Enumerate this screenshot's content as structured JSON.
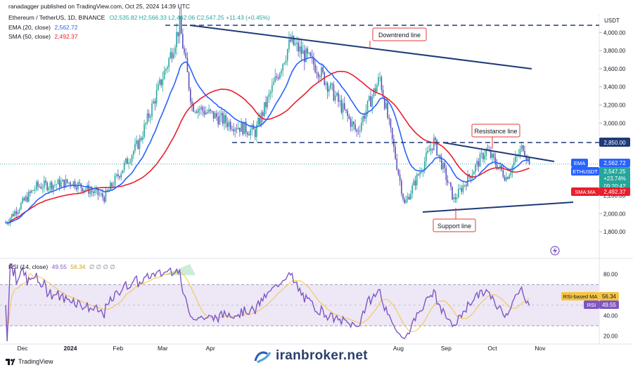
{
  "header": {
    "publisher": "ranadagger published on TradingView.com, Oct 25, 2024 14:39 UTC",
    "symbol": "Ethereum / TetherUS, 1D, BINANCE",
    "ohlc": "O2,535.82 H2,566.33 L2,462.06 C2,547.25 +11.43 (+0.45%)",
    "ema_label": "EMA (20, close)",
    "ema_value": "2,562.72",
    "sma_label": "SMA (50, close)",
    "sma_value": "2,492.37",
    "rsi_label": "RSI (14, close)",
    "rsi_value": "49.55",
    "rsi_ma_value": "56.34",
    "rsi_extra": "∅ ∅ ∅ ∅"
  },
  "colors": {
    "up": "#26a69a",
    "down": "#5b4fb8",
    "ema": "#2962ff",
    "sma": "#e91e2c",
    "trend": "#1e3a78",
    "rsi": "#7e57c2",
    "rsi_ma": "#f5c542",
    "rsi_band": "#ede7f6"
  },
  "chart_data": [
    {
      "type": "candlestick",
      "title": "Ethereum / TetherUS, 1D, BINANCE",
      "currency": "USDT",
      "y_ticks": [
        "4,000.00",
        "3,800.00",
        "3,600.00",
        "3,400.00",
        "3,200.00",
        "3,000.00",
        "2,200.00",
        "2,000.00",
        "1,800.00"
      ],
      "x_ticks": [
        "Dec",
        "2024",
        "Feb",
        "Mar",
        "Apr",
        "Aug",
        "Sep",
        "Oct",
        "Nov"
      ],
      "ylim": [
        1700,
        4080
      ],
      "last_close": 2547.25,
      "price_tags": [
        {
          "label": "EMA",
          "value": "2,562.72"
        },
        {
          "label": "ETHUSDT",
          "value": "2,547.25"
        },
        {
          "label": "change",
          "value": "+23.74%"
        },
        {
          "label": "countdown",
          "value": "09:20:42"
        },
        {
          "label": "SMA:MA",
          "value": "2,492.37"
        }
      ],
      "levels": [
        {
          "name": "upper-dashed",
          "value": 4080
        },
        {
          "name": "resistance-dashed",
          "value": 2850,
          "label": "2,850.00"
        }
      ],
      "annotations": [
        "Downtrend line",
        "Resistance line",
        "Support line"
      ],
      "key_points": [
        {
          "date": "Nov 20",
          "price": 1900
        },
        {
          "date": "Dec 10",
          "price": 2300
        },
        {
          "date": "Jan 2",
          "price": 2350
        },
        {
          "date": "Jan 23",
          "price": 2180
        },
        {
          "date": "Feb 15",
          "price": 2800
        },
        {
          "date": "Mar 5",
          "price": 3700
        },
        {
          "date": "Mar 12",
          "price": 4080
        },
        {
          "date": "Mar 20",
          "price": 3200
        },
        {
          "date": "Apr 13",
          "price": 3000
        },
        {
          "date": "Apr 30",
          "price": 2900
        },
        {
          "date": "May 23",
          "price": 3900
        },
        {
          "date": "Jun 10",
          "price": 3600
        },
        {
          "date": "Jul 5",
          "price": 2900
        },
        {
          "date": "Jul 20",
          "price": 3500
        },
        {
          "date": "Aug 5",
          "price": 2100
        },
        {
          "date": "Aug 24",
          "price": 2800
        },
        {
          "date": "Sep 6",
          "price": 2150
        },
        {
          "date": "Sep 27",
          "price": 2700
        },
        {
          "date": "Oct 10",
          "price": 2400
        },
        {
          "date": "Oct 21",
          "price": 2750
        },
        {
          "date": "Oct 25",
          "price": 2547
        }
      ]
    },
    {
      "type": "line",
      "title": "RSI (14, close)",
      "y_ticks": [
        "80.00",
        "60.00",
        "40.00",
        "20.00"
      ],
      "ylim": [
        15,
        90
      ],
      "band": [
        30,
        70
      ],
      "series": [
        {
          "name": "RSI",
          "last": 49.55
        },
        {
          "name": "RSI-based MA",
          "last": 56.34
        }
      ]
    }
  ],
  "watermark": "iranbroker.net",
  "footer_brand": "TradingView"
}
